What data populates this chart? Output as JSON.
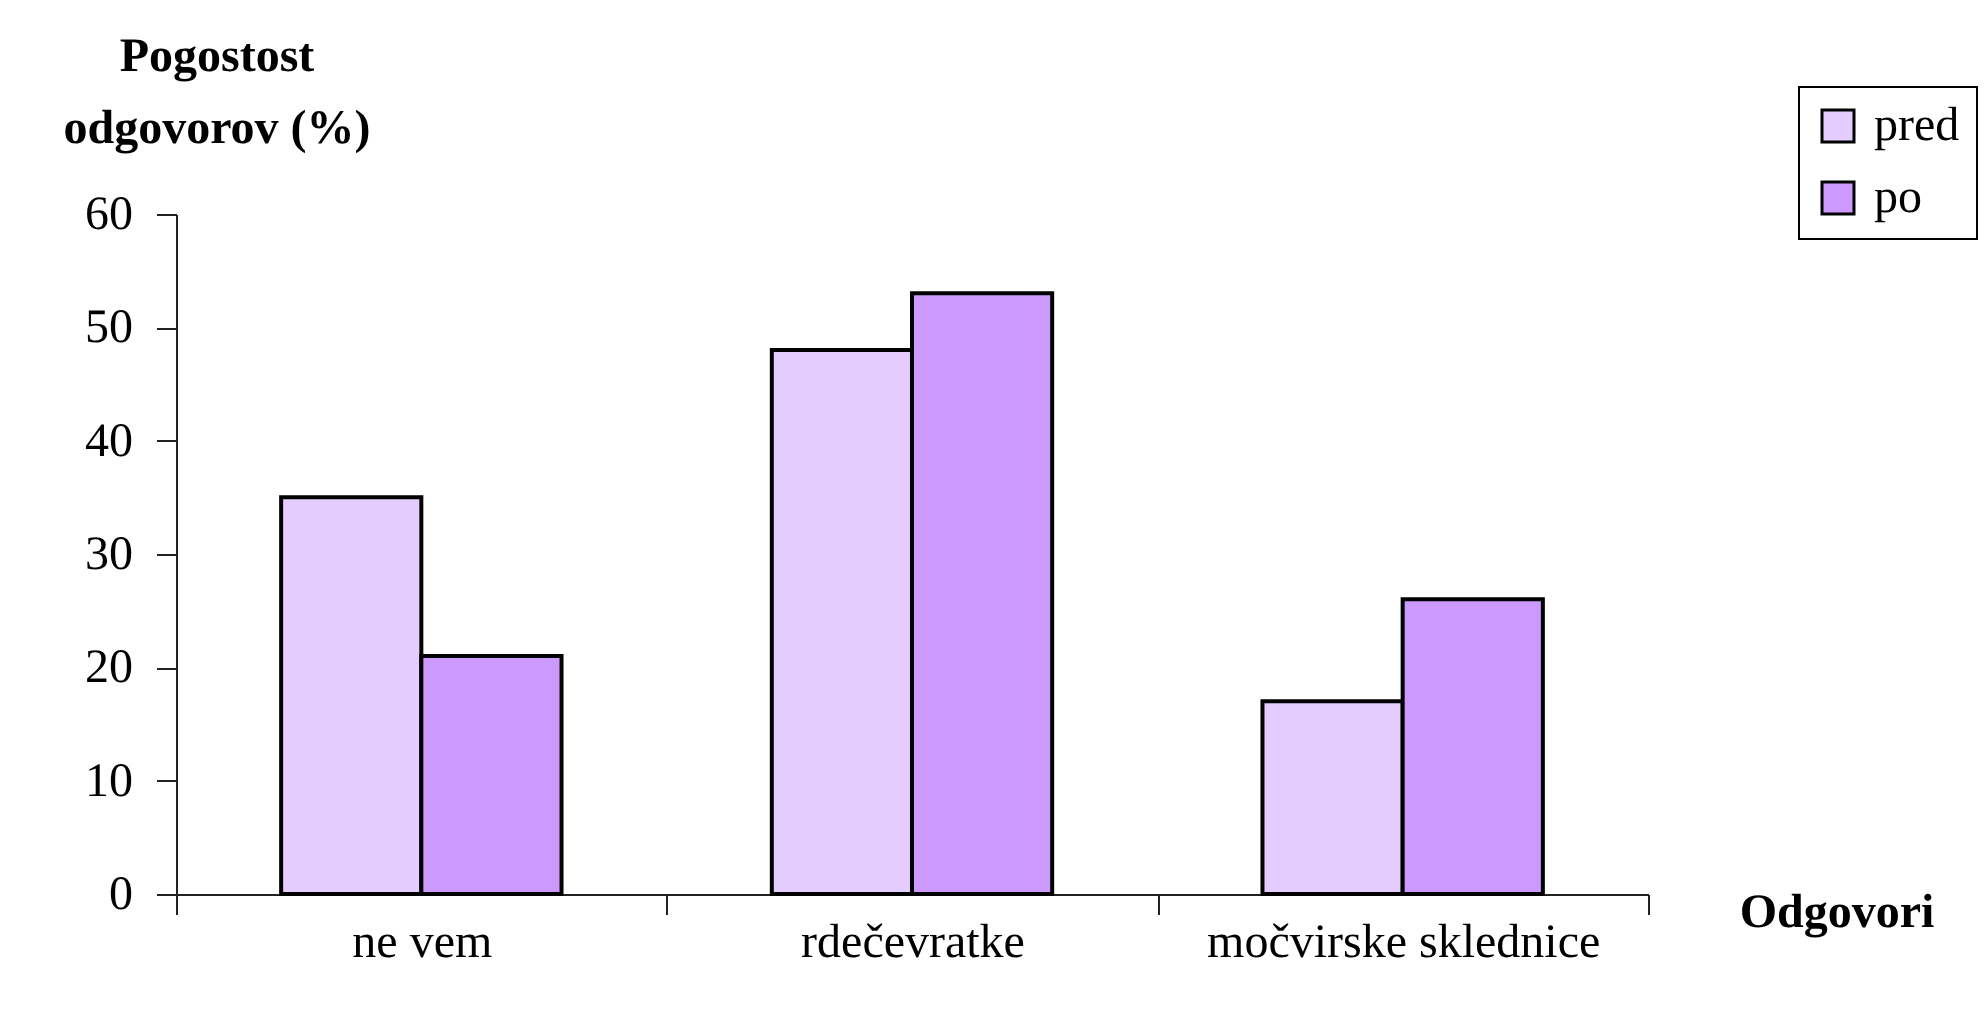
{
  "chart_data": {
    "type": "bar",
    "xlabel": "Odgovori",
    "ylabel": "Pogostost odgovorov (%)",
    "categories": [
      "ne vem",
      "rdečevratke",
      "močvirske sklednice"
    ],
    "series": [
      {
        "name": "pred",
        "color": "#e5ccff",
        "values": [
          35,
          48,
          17
        ]
      },
      {
        "name": "po",
        "color": "#cc99ff",
        "values": [
          21,
          53,
          26
        ]
      }
    ],
    "ylim": [
      0,
      60
    ],
    "yticks": [
      0,
      10,
      20,
      30,
      40,
      50,
      60
    ],
    "legend": "top right"
  }
}
